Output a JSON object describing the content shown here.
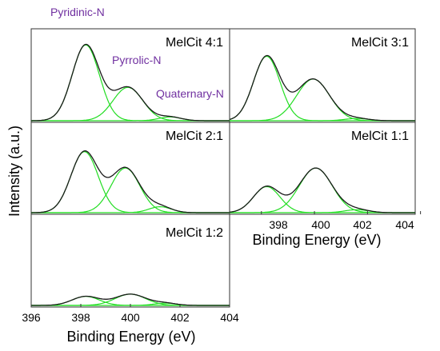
{
  "colors": {
    "envelope": "#1a1a1a",
    "component": "#22dd22",
    "annotation": "#7030a0",
    "frame": "#333333"
  },
  "ylabel": "Intensity (a.u.)",
  "xlabel": "Binding Energy (eV)",
  "annotations": {
    "pyridinic": "Pyridinic-N",
    "pyrrolic": "Pyrrolic-N",
    "quaternary": "Quaternary-N"
  },
  "chart_data": [
    {
      "type": "line",
      "title": "MelCit 4:1",
      "xlim": [
        396,
        404
      ],
      "ylim": [
        0,
        1.15
      ],
      "series": [
        {
          "name": "Pyridinic-N",
          "center": 398.2,
          "amplitude": 1.0,
          "width": 0.55
        },
        {
          "name": "Pyrrolic-N",
          "center": 399.9,
          "amplitude": 0.44,
          "width": 0.6
        },
        {
          "name": "Quaternary-N",
          "center": 401.6,
          "amplitude": 0.05,
          "width": 0.45
        }
      ]
    },
    {
      "type": "line",
      "title": "MelCit 3:1",
      "xlim": [
        396,
        404
      ],
      "ylim": [
        0,
        1.15
      ],
      "series": [
        {
          "name": "Pyridinic-N",
          "center": 398.2,
          "amplitude": 0.85,
          "width": 0.5
        },
        {
          "name": "Pyrrolic-N",
          "center": 399.95,
          "amplitude": 0.55,
          "width": 0.62
        },
        {
          "name": "Quaternary-N",
          "center": 401.6,
          "amplitude": 0.03,
          "width": 0.45
        }
      ]
    },
    {
      "type": "line",
      "title": "MelCit 2:1",
      "xlim": [
        396,
        404
      ],
      "ylim": [
        0,
        1.15
      ],
      "series": [
        {
          "name": "Pyridinic-N",
          "center": 398.15,
          "amplitude": 0.82,
          "width": 0.55
        },
        {
          "name": "Pyrrolic-N",
          "center": 399.8,
          "amplitude": 0.6,
          "width": 0.58
        },
        {
          "name": "Quaternary-N",
          "center": 401.2,
          "amplitude": 0.08,
          "width": 0.45
        }
      ]
    },
    {
      "type": "line",
      "title": "MelCit 1:1",
      "xlim": [
        396,
        404
      ],
      "ylim": [
        0,
        1.15
      ],
      "xticks": [
        398,
        400,
        402,
        404
      ],
      "xlabel": "Binding Energy (eV)",
      "series": [
        {
          "name": "Pyridinic-N",
          "center": 398.2,
          "amplitude": 0.35,
          "width": 0.5
        },
        {
          "name": "Pyrrolic-N",
          "center": 400.05,
          "amplitude": 0.6,
          "width": 0.62
        },
        {
          "name": "Quaternary-N",
          "center": 401.6,
          "amplitude": 0.04,
          "width": 0.45
        }
      ]
    },
    {
      "type": "line",
      "title": "MelCit 1:2",
      "xlim": [
        396,
        404
      ],
      "ylim": [
        0,
        1.15
      ],
      "xticks": [
        396,
        398,
        400,
        402,
        404
      ],
      "xlabel": "Binding Energy (eV)",
      "series": [
        {
          "name": "Pyridinic-N",
          "center": 398.2,
          "amplitude": 0.12,
          "width": 0.55
        },
        {
          "name": "Pyrrolic-N",
          "center": 400.0,
          "amplitude": 0.15,
          "width": 0.62
        },
        {
          "name": "Quaternary-N",
          "center": 401.4,
          "amplitude": 0.03,
          "width": 0.45
        }
      ]
    }
  ]
}
